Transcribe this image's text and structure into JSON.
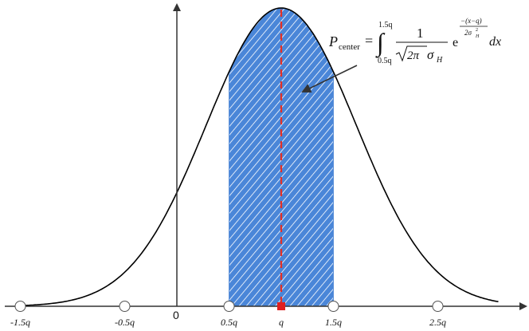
{
  "diagram": {
    "colors": {
      "curve": "#000000",
      "shaded_region": "#4a86d8",
      "hatch": "#ffffff",
      "center_line": "#e53024",
      "center_marker": "#e02020",
      "axis": "#333333",
      "arrow": "#333333"
    },
    "origin_label": "0",
    "axis_ticks": [
      {
        "label": "-1.5q",
        "value": -1.5
      },
      {
        "label": "-0.5q",
        "value": -0.5
      },
      {
        "label": "0.5q",
        "value": 0.5
      },
      {
        "label": "q",
        "value": 1.0
      },
      {
        "label": "1.5q",
        "value": 1.5
      },
      {
        "label": "2.5q",
        "value": 2.5
      }
    ],
    "shaded_interval": {
      "from": 0.5,
      "to": 1.5
    },
    "center_value": 1.0,
    "formula": {
      "lhs_symbol": "P",
      "lhs_subscript": "center",
      "equals": "=",
      "lower_limit": "0.5q",
      "upper_limit": "1.5q",
      "integral_sign": "∫",
      "fraction_numerator": "1",
      "fraction_denominator_radicand": "2π",
      "fraction_denominator_sigma": "σ",
      "fraction_denominator_sigma_sub": "H",
      "exp_base": "e",
      "exp_numerator": "−(x−q)",
      "exp_denominator": "2σ",
      "exp_denominator_sup": "2",
      "exp_denominator_sub": "H",
      "differential": "dx"
    }
  }
}
